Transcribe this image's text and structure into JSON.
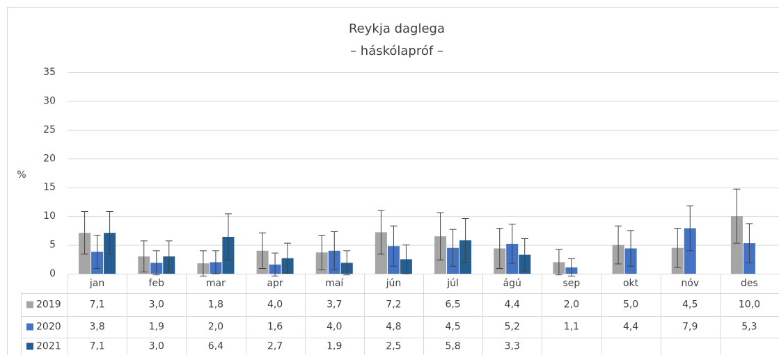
{
  "chart_data": {
    "type": "bar",
    "title": "Reykja daglega",
    "subtitle": "– háskólapróf –",
    "y_label": "%",
    "categories": [
      "jan",
      "feb",
      "mar",
      "apr",
      "maí",
      "jún",
      "júl",
      "ágú",
      "sep",
      "okt",
      "nóv",
      "des"
    ],
    "series": [
      {
        "name": "2019",
        "color": "#a5a5a5",
        "values": [
          7.1,
          3.0,
          1.8,
          4.0,
          3.7,
          7.2,
          6.5,
          4.4,
          2.0,
          5.0,
          4.5,
          10.0
        ],
        "value_labels": [
          "7,1",
          "3,0",
          "1,8",
          "4,0",
          "3,7",
          "7,2",
          "6,5",
          "4,4",
          "2,0",
          "5,0",
          "4,5",
          "10,0"
        ],
        "errors": [
          3.7,
          2.7,
          2.2,
          3.1,
          3.0,
          3.8,
          4.1,
          3.5,
          2.2,
          3.3,
          3.4,
          4.7
        ]
      },
      {
        "name": "2020",
        "color": "#4472c4",
        "values": [
          3.8,
          1.9,
          2.0,
          1.6,
          4.0,
          4.8,
          4.5,
          5.2,
          1.1,
          4.4,
          7.9,
          5.3
        ],
        "value_labels": [
          "3,8",
          "1,9",
          "2,0",
          "1,6",
          "4,0",
          "4,8",
          "4,5",
          "5,2",
          "1,1",
          "4,4",
          "7,9",
          "5,3"
        ],
        "errors": [
          2.9,
          2.1,
          2.0,
          2.0,
          3.3,
          3.5,
          3.2,
          3.4,
          1.5,
          3.1,
          3.9,
          3.4
        ]
      },
      {
        "name": "2021",
        "color": "#255e91",
        "values": [
          7.1,
          3.0,
          6.4,
          2.7,
          1.9,
          2.5,
          5.8,
          3.3,
          null,
          null,
          null,
          null
        ],
        "value_labels": [
          "7,1",
          "3,0",
          "6,4",
          "2,7",
          "1,9",
          "2,5",
          "5,8",
          "3,3",
          null,
          null,
          null,
          null
        ],
        "errors": [
          3.7,
          2.7,
          4.0,
          2.6,
          2.1,
          2.5,
          3.8,
          2.8,
          null,
          null,
          null,
          null
        ]
      }
    ],
    "ylim": [
      0,
      35
    ],
    "yticks": [
      0,
      5,
      10,
      15,
      20,
      25,
      30,
      35
    ],
    "grid": true
  }
}
